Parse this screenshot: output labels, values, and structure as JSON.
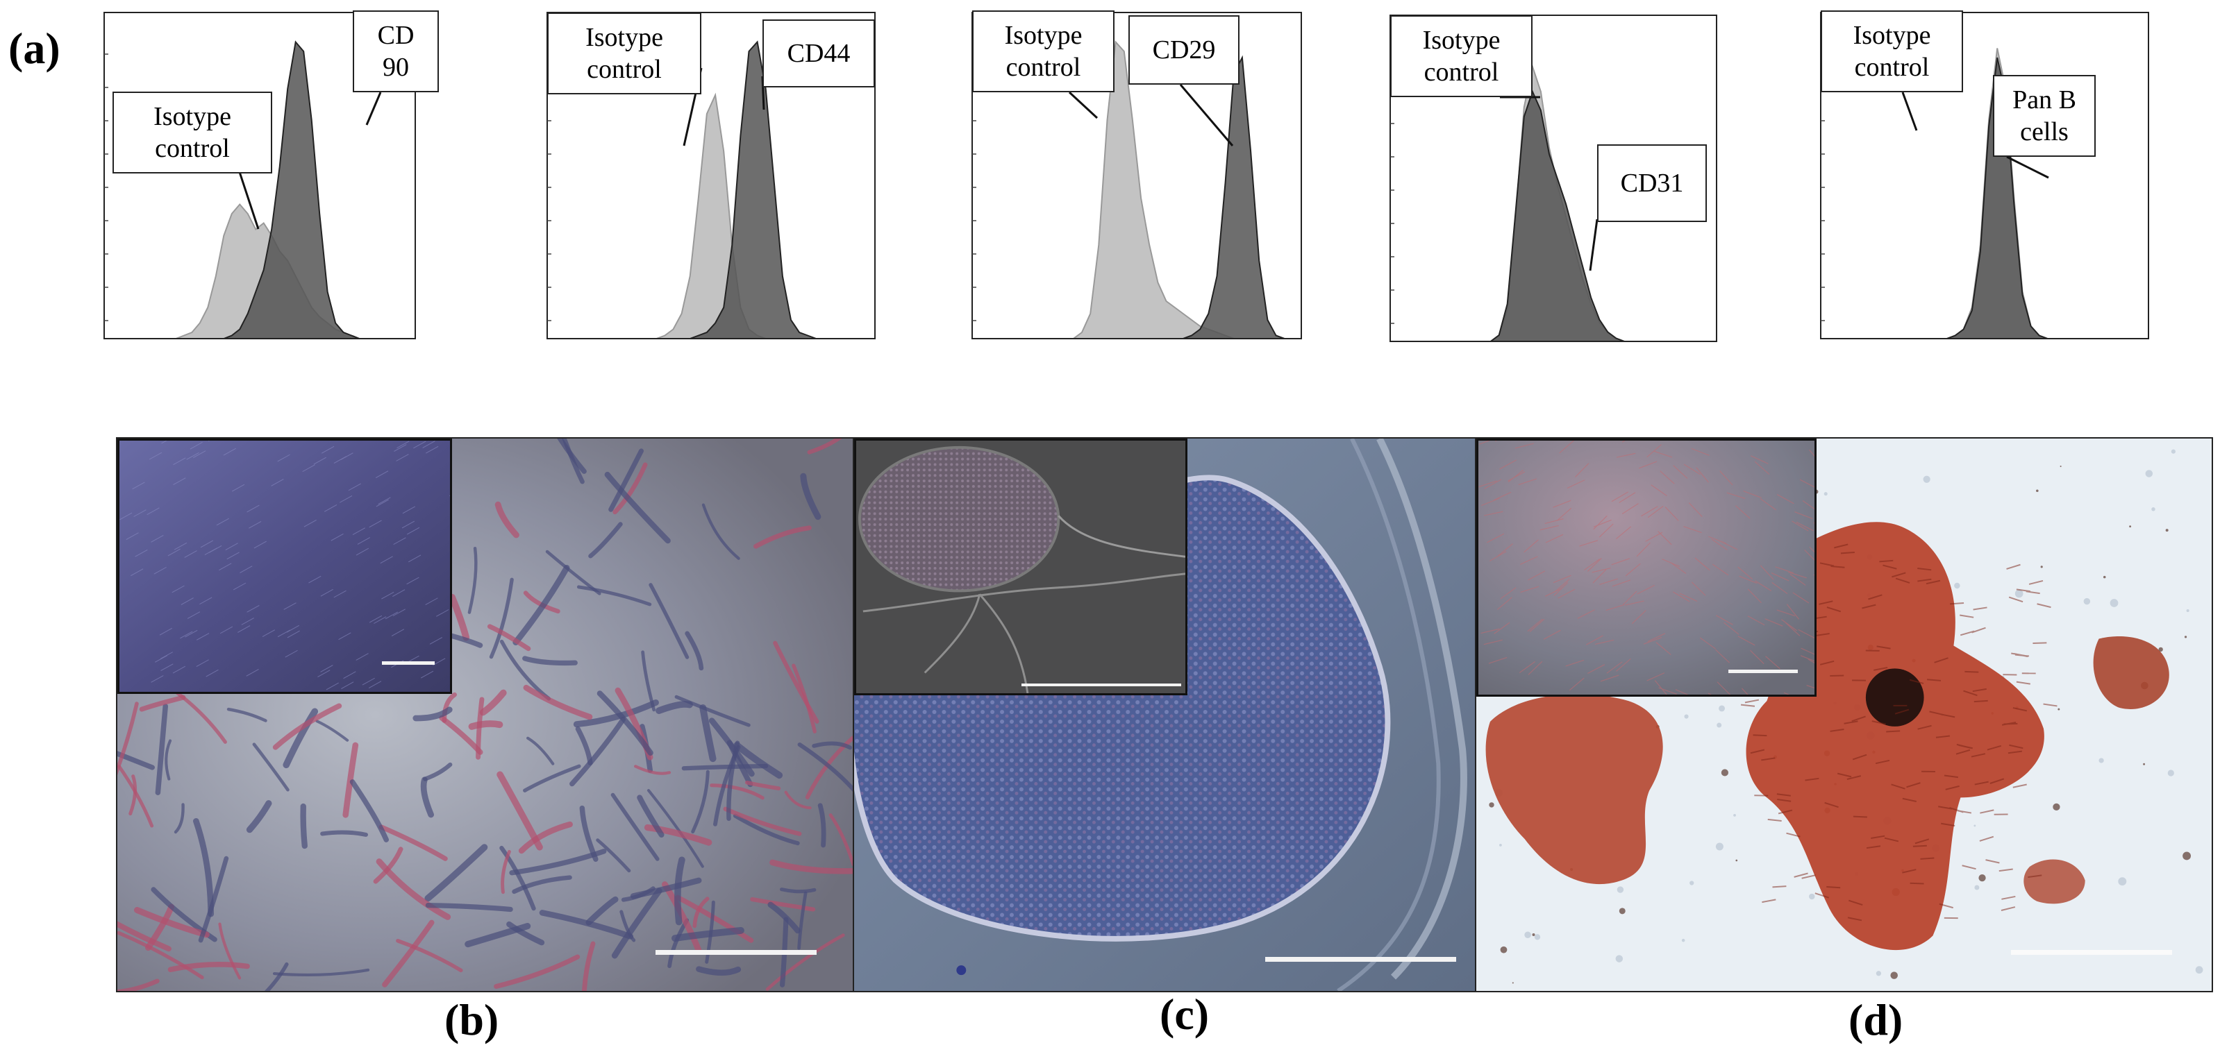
{
  "figure": {
    "panel_labels": {
      "a": "(a)",
      "b": "(b)",
      "c": "(c)",
      "d": "(d)"
    }
  },
  "chart_data": [
    {
      "type": "area",
      "marker": "CD\n90",
      "control": "Isotype\ncontrol",
      "series": [
        {
          "name": "Isotype control",
          "color": "#bdbdbd",
          "values": [
            0,
            0,
            0,
            0,
            0,
            0,
            0,
            0,
            0,
            0,
            0.01,
            0.02,
            0.05,
            0.1,
            0.2,
            0.33,
            0.4,
            0.43,
            0.4,
            0.35,
            0.37,
            0.33,
            0.28,
            0.25,
            0.2,
            0.15,
            0.1,
            0.07,
            0.05,
            0.03,
            0.02,
            0.01,
            0,
            0,
            0,
            0,
            0,
            0,
            0,
            0
          ]
        },
        {
          "name": "CD 90",
          "color": "#555555",
          "values": [
            0,
            0,
            0,
            0,
            0,
            0,
            0,
            0,
            0,
            0,
            0,
            0,
            0,
            0,
            0,
            0,
            0.01,
            0.03,
            0.08,
            0.15,
            0.22,
            0.35,
            0.55,
            0.8,
            0.95,
            0.92,
            0.7,
            0.4,
            0.15,
            0.05,
            0.02,
            0.01,
            0,
            0,
            0,
            0,
            0,
            0,
            0,
            0
          ]
        }
      ]
    },
    {
      "type": "area",
      "marker": "CD44",
      "control": "Isotype\ncontrol",
      "series": [
        {
          "name": "Isotype control",
          "color": "#bdbdbd",
          "values": [
            0,
            0,
            0,
            0,
            0,
            0,
            0,
            0,
            0,
            0,
            0,
            0,
            0,
            0,
            0.01,
            0.03,
            0.08,
            0.2,
            0.45,
            0.72,
            0.78,
            0.6,
            0.3,
            0.1,
            0.03,
            0.01,
            0,
            0,
            0,
            0,
            0,
            0,
            0,
            0,
            0,
            0,
            0,
            0,
            0,
            0
          ]
        },
        {
          "name": "CD44",
          "color": "#555555",
          "values": [
            0,
            0,
            0,
            0,
            0,
            0,
            0,
            0,
            0,
            0,
            0,
            0,
            0,
            0,
            0,
            0,
            0,
            0,
            0.01,
            0.02,
            0.05,
            0.1,
            0.3,
            0.65,
            0.92,
            0.95,
            0.8,
            0.5,
            0.2,
            0.06,
            0.02,
            0.01,
            0,
            0,
            0,
            0,
            0,
            0,
            0,
            0
          ]
        }
      ]
    },
    {
      "type": "area",
      "marker": "CD29",
      "control": "Isotype\ncontrol",
      "series": [
        {
          "name": "Isotype control",
          "color": "#bdbdbd",
          "values": [
            0,
            0,
            0,
            0,
            0,
            0,
            0,
            0,
            0,
            0,
            0,
            0,
            0,
            0.02,
            0.08,
            0.3,
            0.7,
            0.95,
            0.92,
            0.7,
            0.45,
            0.3,
            0.18,
            0.12,
            0.1,
            0.08,
            0.06,
            0.04,
            0.03,
            0.02,
            0.01,
            0,
            0,
            0,
            0,
            0,
            0,
            0,
            0,
            0
          ]
        },
        {
          "name": "CD29",
          "color": "#555555",
          "values": [
            0,
            0,
            0,
            0,
            0,
            0,
            0,
            0,
            0,
            0,
            0,
            0,
            0,
            0,
            0,
            0,
            0,
            0,
            0,
            0,
            0,
            0,
            0,
            0,
            0,
            0,
            0.01,
            0.03,
            0.08,
            0.2,
            0.5,
            0.85,
            0.9,
            0.6,
            0.25,
            0.06,
            0.01,
            0,
            0,
            0
          ]
        }
      ]
    },
    {
      "type": "area",
      "marker": "CD31",
      "control": "Isotype\ncontrol",
      "series": [
        {
          "name": "Isotype control",
          "color": "#bdbdbd",
          "values": [
            0,
            0,
            0,
            0,
            0,
            0,
            0,
            0,
            0,
            0,
            0,
            0,
            0,
            0.02,
            0.1,
            0.4,
            0.75,
            0.88,
            0.8,
            0.62,
            0.5,
            0.4,
            0.3,
            0.2,
            0.12,
            0.06,
            0.03,
            0.01,
            0,
            0,
            0,
            0,
            0,
            0,
            0,
            0,
            0,
            0,
            0,
            0
          ]
        },
        {
          "name": "CD31",
          "color": "#555555",
          "values": [
            0,
            0,
            0,
            0,
            0,
            0,
            0,
            0,
            0,
            0,
            0,
            0,
            0,
            0.02,
            0.12,
            0.42,
            0.72,
            0.8,
            0.74,
            0.6,
            0.52,
            0.44,
            0.34,
            0.24,
            0.14,
            0.07,
            0.03,
            0.01,
            0,
            0,
            0,
            0,
            0,
            0,
            0,
            0,
            0,
            0,
            0,
            0
          ]
        }
      ]
    },
    {
      "type": "area",
      "marker": "Pan B\ncells",
      "control": "Isotype\ncontrol",
      "series": [
        {
          "name": "Isotype control",
          "color": "#bdbdbd",
          "values": [
            0,
            0,
            0,
            0,
            0,
            0,
            0,
            0,
            0,
            0,
            0,
            0,
            0,
            0,
            0,
            0,
            0.01,
            0.03,
            0.1,
            0.3,
            0.7,
            0.93,
            0.8,
            0.45,
            0.15,
            0.04,
            0.01,
            0,
            0,
            0,
            0,
            0,
            0,
            0,
            0,
            0,
            0,
            0,
            0,
            0
          ]
        },
        {
          "name": "Pan B cells",
          "color": "#555555",
          "values": [
            0,
            0,
            0,
            0,
            0,
            0,
            0,
            0,
            0,
            0,
            0,
            0,
            0,
            0,
            0,
            0,
            0.01,
            0.03,
            0.09,
            0.28,
            0.68,
            0.9,
            0.78,
            0.43,
            0.14,
            0.04,
            0.01,
            0,
            0,
            0,
            0,
            0,
            0,
            0,
            0,
            0,
            0,
            0,
            0,
            0
          ]
        }
      ]
    }
  ]
}
